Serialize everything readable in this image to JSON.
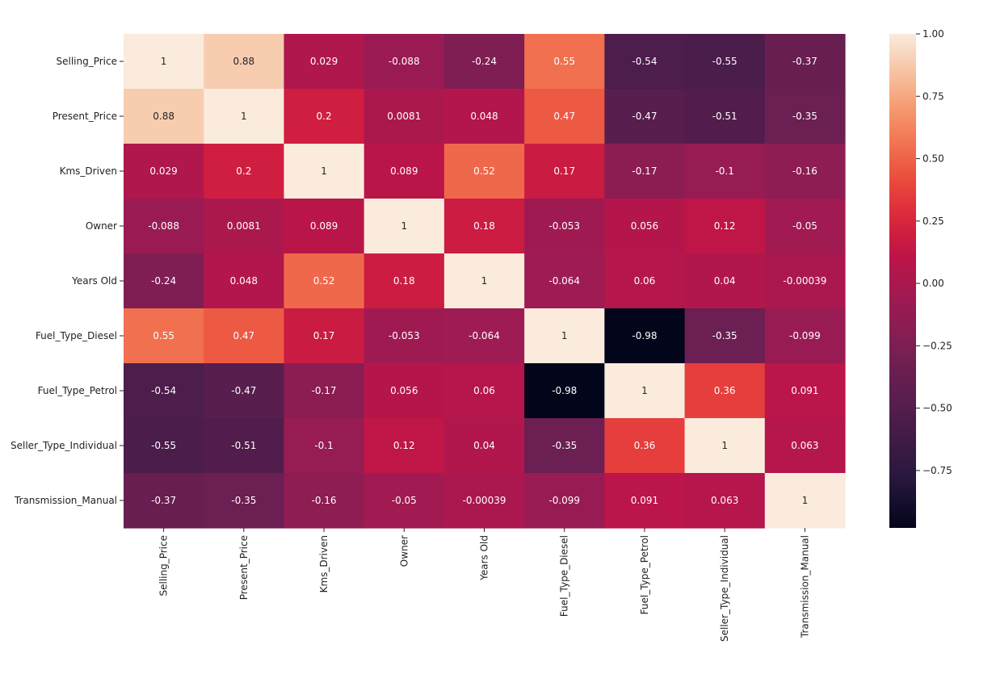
{
  "chart_data": {
    "type": "heatmap",
    "title": "",
    "xlabel": "",
    "ylabel": "",
    "labels": [
      "Selling_Price",
      "Present_Price",
      "Kms_Driven",
      "Owner",
      "Years Old",
      "Fuel_Type_Diesel",
      "Fuel_Type_Petrol",
      "Seller_Type_Individual",
      "Transmission_Manual"
    ],
    "values": [
      [
        1,
        0.88,
        0.029,
        -0.088,
        -0.24,
        0.55,
        -0.54,
        -0.55,
        -0.37
      ],
      [
        0.88,
        1,
        0.2,
        0.0081,
        0.048,
        0.47,
        -0.47,
        -0.51,
        -0.35
      ],
      [
        0.029,
        0.2,
        1,
        0.089,
        0.52,
        0.17,
        -0.17,
        -0.1,
        -0.16
      ],
      [
        -0.088,
        0.0081,
        0.089,
        1,
        0.18,
        -0.053,
        0.056,
        0.12,
        -0.05
      ],
      [
        -0.24,
        0.048,
        0.52,
        0.18,
        1,
        -0.064,
        0.06,
        0.04,
        -0.00039
      ],
      [
        0.55,
        0.47,
        0.17,
        -0.053,
        -0.064,
        1,
        -0.98,
        -0.35,
        -0.099
      ],
      [
        -0.54,
        -0.47,
        -0.17,
        0.056,
        0.06,
        -0.98,
        1,
        0.36,
        0.091
      ],
      [
        -0.55,
        -0.51,
        -0.1,
        0.12,
        0.04,
        -0.35,
        0.36,
        1,
        0.063
      ],
      [
        -0.37,
        -0.35,
        -0.16,
        -0.05,
        -0.00039,
        -0.099,
        0.091,
        0.063,
        1
      ]
    ],
    "annotations": [
      [
        "1",
        "0.88",
        "0.029",
        "-0.088",
        "-0.24",
        "0.55",
        "-0.54",
        "-0.55",
        "-0.37"
      ],
      [
        "0.88",
        "1",
        "0.2",
        "0.0081",
        "0.048",
        "0.47",
        "-0.47",
        "-0.51",
        "-0.35"
      ],
      [
        "0.029",
        "0.2",
        "1",
        "0.089",
        "0.52",
        "0.17",
        "-0.17",
        "-0.1",
        "-0.16"
      ],
      [
        "-0.088",
        "0.0081",
        "0.089",
        "1",
        "0.18",
        "-0.053",
        "0.056",
        "0.12",
        "-0.05"
      ],
      [
        "-0.24",
        "0.048",
        "0.52",
        "0.18",
        "1",
        "-0.064",
        "0.06",
        "0.04",
        "-0.00039"
      ],
      [
        "0.55",
        "0.47",
        "0.17",
        "-0.053",
        "-0.064",
        "1",
        "-0.98",
        "-0.35",
        "-0.099"
      ],
      [
        "-0.54",
        "-0.47",
        "-0.17",
        "0.056",
        "0.06",
        "-0.98",
        "1",
        "0.36",
        "0.091"
      ],
      [
        "-0.55",
        "-0.51",
        "-0.1",
        "0.12",
        "0.04",
        "-0.35",
        "0.36",
        "1",
        "0.063"
      ],
      [
        "-0.37",
        "-0.35",
        "-0.16",
        "-0.05",
        "-0.00039",
        "-0.099",
        "0.091",
        "0.063",
        "1"
      ]
    ],
    "vmin": -0.98,
    "vmax": 1.0,
    "colormap": "rocket",
    "colorbar": {
      "ticks": [
        1.0,
        0.75,
        0.5,
        0.25,
        0.0,
        -0.25,
        -0.5,
        -0.75
      ],
      "tick_labels": [
        "1.00",
        "0.75",
        "0.50",
        "0.25",
        "0.00",
        "−0.25",
        "−0.50",
        "−0.75"
      ],
      "placement": "right"
    },
    "grid": false
  }
}
